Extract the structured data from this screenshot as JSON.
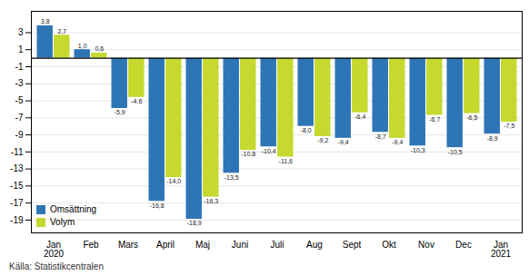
{
  "chart_data": {
    "type": "bar",
    "categories": [
      "Jan\n2020",
      "Feb",
      "Mars",
      "April",
      "Maj",
      "Juni",
      "Juli",
      "Aug",
      "Sept",
      "Okt",
      "Nov",
      "Dec",
      "Jan\n2021"
    ],
    "series": [
      {
        "name": "Omsättning",
        "color": "#2e75b6",
        "values": [
          3.8,
          1.0,
          -5.9,
          -16.8,
          -18.9,
          -13.5,
          -10.4,
          -8.0,
          -9.4,
          -8.7,
          -10.3,
          -10.5,
          -8.9
        ],
        "value_labels": [
          "3,8",
          "1,0",
          "-5,9",
          "-16,8",
          "-18,9",
          "-13,5",
          "-10,4",
          "-8,0",
          "-9,4",
          "-8,7",
          "-10,3",
          "-10,5",
          "-8,9"
        ]
      },
      {
        "name": "Volym",
        "color": "#c5d92e",
        "values": [
          2.7,
          0.6,
          -4.6,
          -14.0,
          -16.3,
          -10.8,
          -11.6,
          -9.2,
          -6.4,
          -9.4,
          -6.7,
          -6.5,
          -7.5
        ],
        "value_labels": [
          "2,7",
          "0,6",
          "-4,6",
          "-14,0",
          "-16,3",
          "-10,8",
          "-11,6",
          "-9,2",
          "-6,4",
          "-9,4",
          "-6,7",
          "-6,5",
          "-7,5"
        ]
      }
    ],
    "ylim": [
      -20.5,
      5.5
    ],
    "yticks": [
      3,
      1,
      -1,
      -3,
      -5,
      -7,
      -9,
      -11,
      -13,
      -15,
      -17,
      -19
    ],
    "grid": true,
    "legend": "lower left",
    "data_labels": true,
    "annotations": [
      "Källa: Statistikcentralen"
    ]
  }
}
